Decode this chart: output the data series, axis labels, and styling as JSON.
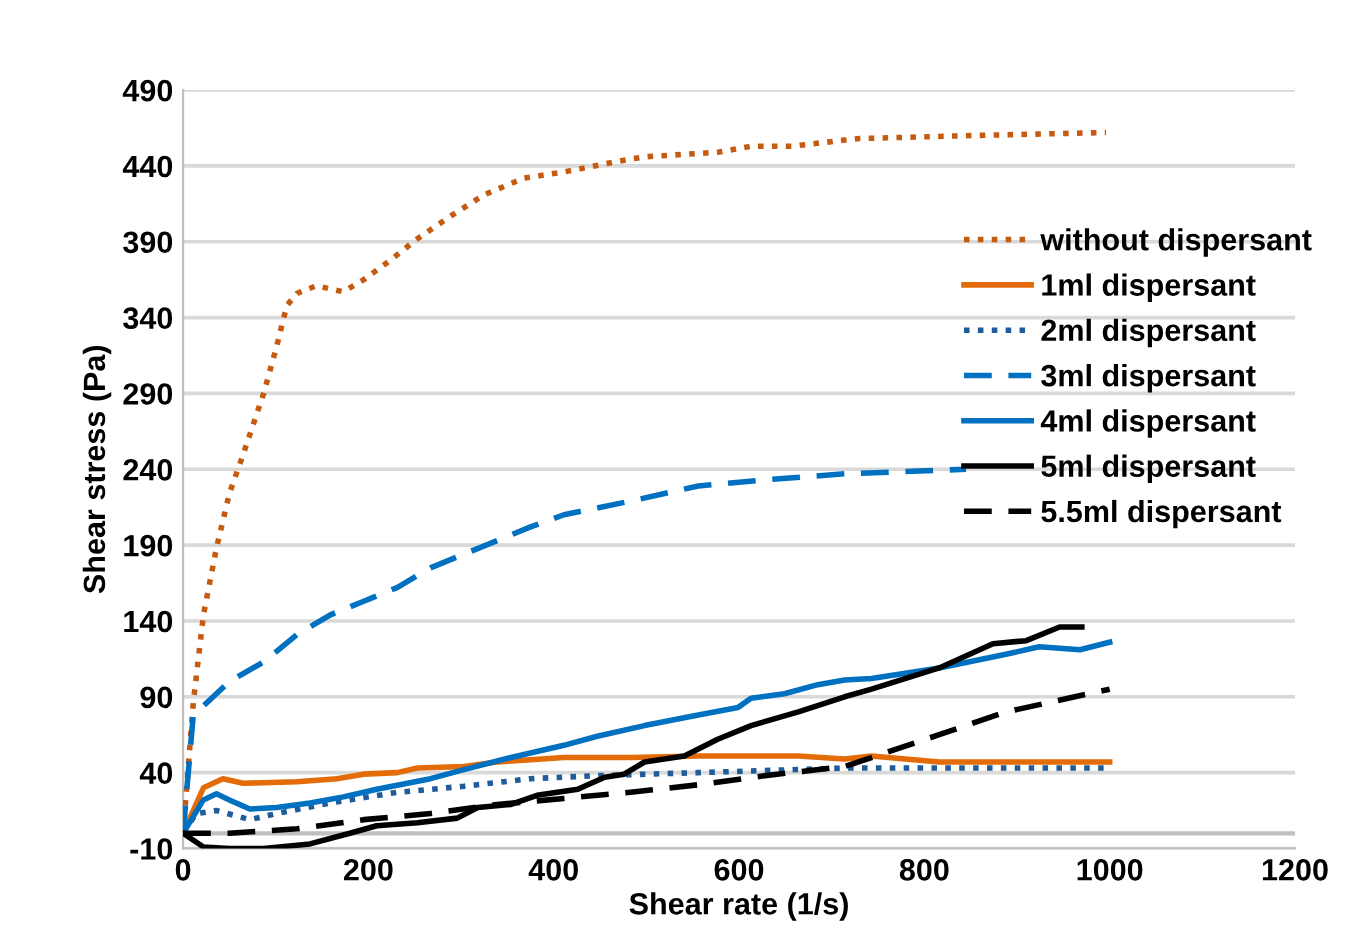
{
  "chart_data": {
    "type": "line",
    "xlabel": "Shear rate (1/s)",
    "ylabel": "Shear stress (Pa)",
    "xlim": [
      0,
      1200
    ],
    "xticks": [
      0,
      200,
      400,
      600,
      800,
      1000,
      1200
    ],
    "ylim": [
      -10,
      490
    ],
    "yticks": [
      -10,
      40,
      90,
      140,
      190,
      240,
      290,
      340,
      390,
      440,
      490
    ],
    "grid": "y",
    "legend": "right",
    "ref_lines": [
      {
        "axis": "y",
        "value": 0,
        "color": "#bfbfbf"
      }
    ],
    "series": [
      {
        "name": "without dispersant",
        "color": "#c55a11",
        "line_style": "dotted",
        "x": [
          0,
          11,
          22,
          36,
          50,
          65,
          87,
          101,
          112,
          123,
          144,
          173,
          195,
          224,
          253,
          289,
          325,
          368,
          411,
          469,
          498,
          577,
          613,
          657,
          714,
          730,
          851,
          996
        ],
        "values": [
          0,
          86,
          144,
          188,
          224,
          250,
          290,
          321,
          348,
          356,
          361,
          357,
          365,
          378,
          392,
          407,
          421,
          432,
          436,
          443,
          446,
          449,
          453,
          453,
          457,
          458,
          460,
          462
        ]
      },
      {
        "name": "1ml dispersant",
        "color": "#e36c09",
        "line_style": "solid",
        "x": [
          0,
          22,
          43,
          65,
          123,
          166,
          195,
          231,
          253,
          303,
          339,
          411,
          483,
          556,
          664,
          714,
          743,
          816,
          888,
          1000
        ],
        "values": [
          0,
          30,
          36,
          33,
          34,
          36,
          39,
          40,
          43,
          44,
          47,
          50,
          50,
          51,
          51,
          49,
          51,
          47,
          47,
          47
        ]
      },
      {
        "name": "2ml dispersant",
        "color": "#1f5c99",
        "line_style": "dotted",
        "x": [
          0,
          14,
          36,
          72,
          101,
          159,
          231,
          303,
          375,
          447,
          556,
          714,
          1000
        ],
        "values": [
          0,
          13,
          15,
          9,
          13,
          20,
          27,
          31,
          36,
          38,
          40,
          43,
          43
        ]
      },
      {
        "name": "3ml dispersant",
        "color": "#0070c0",
        "line_style": "dashed",
        "x": [
          0,
          11,
          22,
          50,
          87,
          123,
          159,
          195,
          231,
          267,
          303,
          339,
          375,
          411,
          483,
          556,
          628,
          714,
          845
        ],
        "values": [
          0,
          78,
          84,
          100,
          113,
          131,
          144,
          153,
          162,
          175,
          184,
          193,
          202,
          210,
          219,
          229,
          233,
          237,
          240
        ]
      },
      {
        "name": "4ml dispersant",
        "color": "#0070c0",
        "line_style": "solid",
        "x": [
          0,
          22,
          36,
          50,
          72,
          101,
          137,
          173,
          209,
          267,
          303,
          354,
          411,
          447,
          498,
          556,
          599,
          613,
          649,
          685,
          714,
          743,
          816,
          888,
          924,
          968,
          1000
        ],
        "values": [
          0,
          22,
          26,
          22,
          16,
          17,
          20,
          24,
          29,
          36,
          42,
          50,
          58,
          64,
          71,
          78,
          83,
          89,
          92,
          98,
          101,
          102,
          109,
          118,
          123,
          121,
          126
        ]
      },
      {
        "name": "5ml dispersant",
        "color": "#000000",
        "line_style": "solid",
        "x": [
          0,
          22,
          50,
          87,
          137,
          180,
          209,
          253,
          296,
          318,
          354,
          382,
          426,
          455,
          476,
          498,
          541,
          577,
          613,
          664,
          714,
          743,
          816,
          874,
          910,
          946,
          970
        ],
        "values": [
          0,
          -9,
          -10,
          -10,
          -7,
          0,
          5,
          7,
          10,
          17,
          19,
          25,
          29,
          37,
          39,
          47,
          51,
          62,
          71,
          80,
          90,
          95,
          109,
          125,
          127,
          136,
          136
        ]
      },
      {
        "name": "5.5ml dispersant",
        "color": "#000000",
        "line_style": "dashed",
        "x": [
          0,
          50,
          123,
          195,
          267,
          339,
          411,
          483,
          556,
          628,
          714,
          816,
          888,
          1000
        ],
        "values": [
          0,
          0,
          3,
          9,
          13,
          19,
          23,
          27,
          32,
          38,
          44,
          65,
          80,
          95
        ]
      }
    ]
  }
}
